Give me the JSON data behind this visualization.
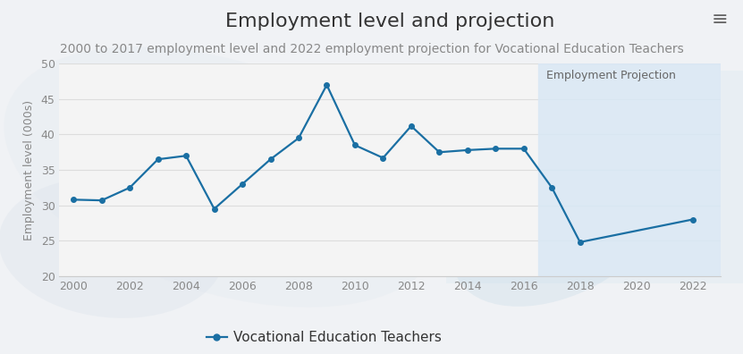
{
  "title": "Employment level and projection",
  "subtitle": "2000 to 2017 employment level and 2022 employment projection for Vocational Education Teachers",
  "ylabel": "Employment level (000s)",
  "all_years": [
    2000,
    2001,
    2002,
    2003,
    2004,
    2005,
    2006,
    2007,
    2008,
    2009,
    2010,
    2011,
    2012,
    2013,
    2014,
    2015,
    2016,
    2017,
    2018,
    2022
  ],
  "all_values": [
    30.8,
    30.7,
    32.5,
    36.5,
    37.0,
    29.5,
    33.0,
    36.5,
    39.5,
    47.0,
    38.5,
    36.7,
    41.2,
    37.5,
    37.8,
    38.0,
    38.0,
    32.5,
    24.8,
    28.0
  ],
  "projection_start_year": 2016.5,
  "projection_end_year": 2023,
  "projection_label": "Employment Projection",
  "legend_label": "Vocational Education Teachers",
  "line_color": "#1a6fa3",
  "projection_bg_color": "#d9e8f5",
  "ylim": [
    20,
    50
  ],
  "yticks": [
    20,
    25,
    30,
    35,
    40,
    45,
    50
  ],
  "xticks": [
    2000,
    2002,
    2004,
    2006,
    2008,
    2010,
    2012,
    2014,
    2016,
    2018,
    2020,
    2022
  ],
  "xlim_left": 1999.5,
  "xlim_right": 2023,
  "bg_color": "#f5f5f5",
  "plot_bg_color": "#f0f0f0",
  "grid_color": "#dddddd",
  "title_fontsize": 16,
  "subtitle_fontsize": 10,
  "axis_label_fontsize": 9,
  "tick_fontsize": 9,
  "legend_fontsize": 11
}
